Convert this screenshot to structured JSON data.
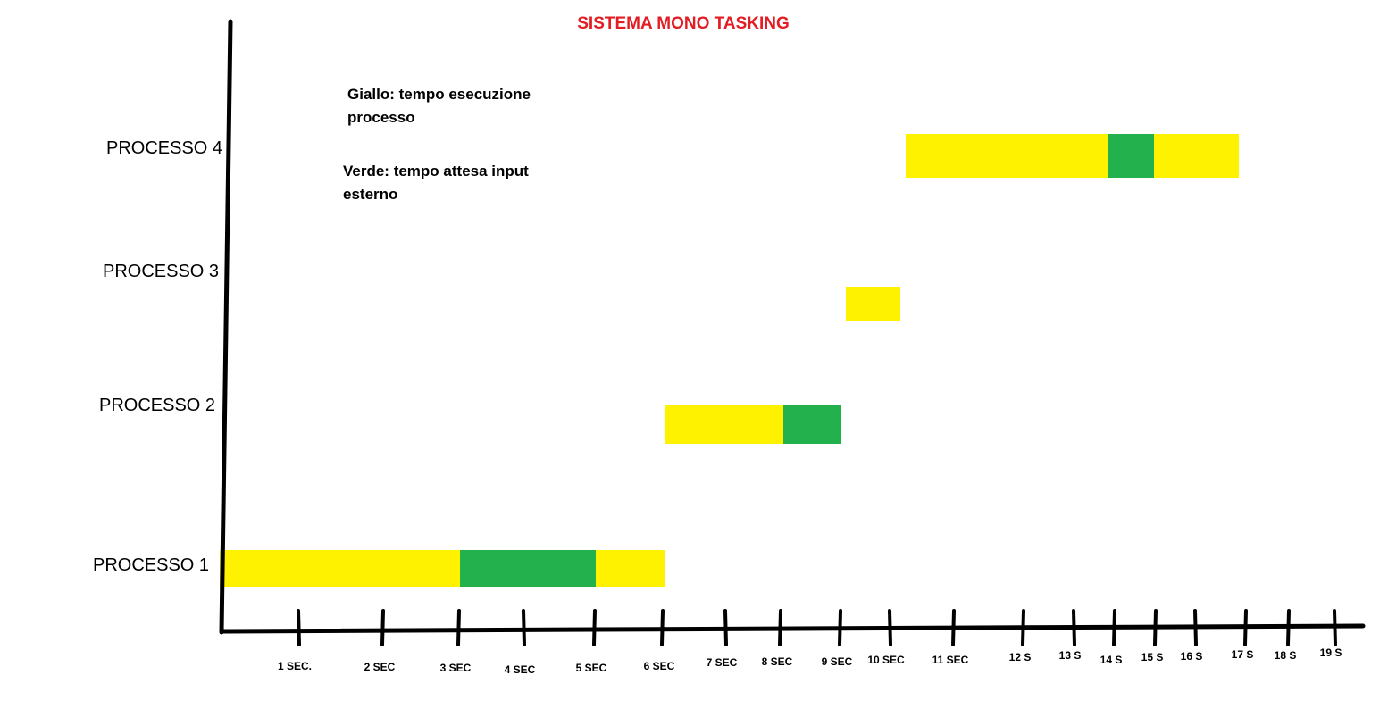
{
  "chart_data": {
    "type": "gantt",
    "title": "SISTEMA MONO TASKING",
    "legend": [
      {
        "label": "Giallo: tempo esecuzione processo",
        "color": "#fff200"
      },
      {
        "label": "Verde: tempo attesa input esterno",
        "color": "#22b14c"
      }
    ],
    "x_tick_labels": [
      "1 SEC.",
      "2 SEC",
      "3 SEC",
      "4 SEC",
      "5 SEC",
      "6 SEC",
      "7 SEC",
      "8 SEC",
      "9 SEC",
      "10 SEC",
      "11 SEC",
      "12 S",
      "13 S",
      "14 S",
      "15 S",
      "16 S",
      "17 S",
      "18 S",
      "19 S"
    ],
    "xlim": [
      0,
      20
    ],
    "rows": [
      {
        "label": "PROCESSO 1",
        "segments": [
          {
            "state": "esecuzione",
            "color": "#fff200",
            "start": 0,
            "end": 3
          },
          {
            "state": "attesa",
            "color": "#22b14c",
            "start": 3,
            "end": 5
          },
          {
            "state": "esecuzione",
            "color": "#fff200",
            "start": 5,
            "end": 6
          }
        ]
      },
      {
        "label": "PROCESSO 2",
        "segments": [
          {
            "state": "esecuzione",
            "color": "#fff200",
            "start": 6,
            "end": 8
          },
          {
            "state": "attesa",
            "color": "#22b14c",
            "start": 8,
            "end": 9
          }
        ]
      },
      {
        "label": "PROCESSO 3",
        "segments": [
          {
            "state": "esecuzione",
            "color": "#fff200",
            "start": 9,
            "end": 10
          }
        ]
      },
      {
        "label": "PROCESSO 4",
        "segments": [
          {
            "state": "esecuzione",
            "color": "#fff200",
            "start": 10,
            "end": 14
          },
          {
            "state": "attesa",
            "color": "#22b14c",
            "start": 14,
            "end": 15
          },
          {
            "state": "esecuzione",
            "color": "#fff200",
            "start": 15,
            "end": 17
          }
        ]
      }
    ]
  }
}
